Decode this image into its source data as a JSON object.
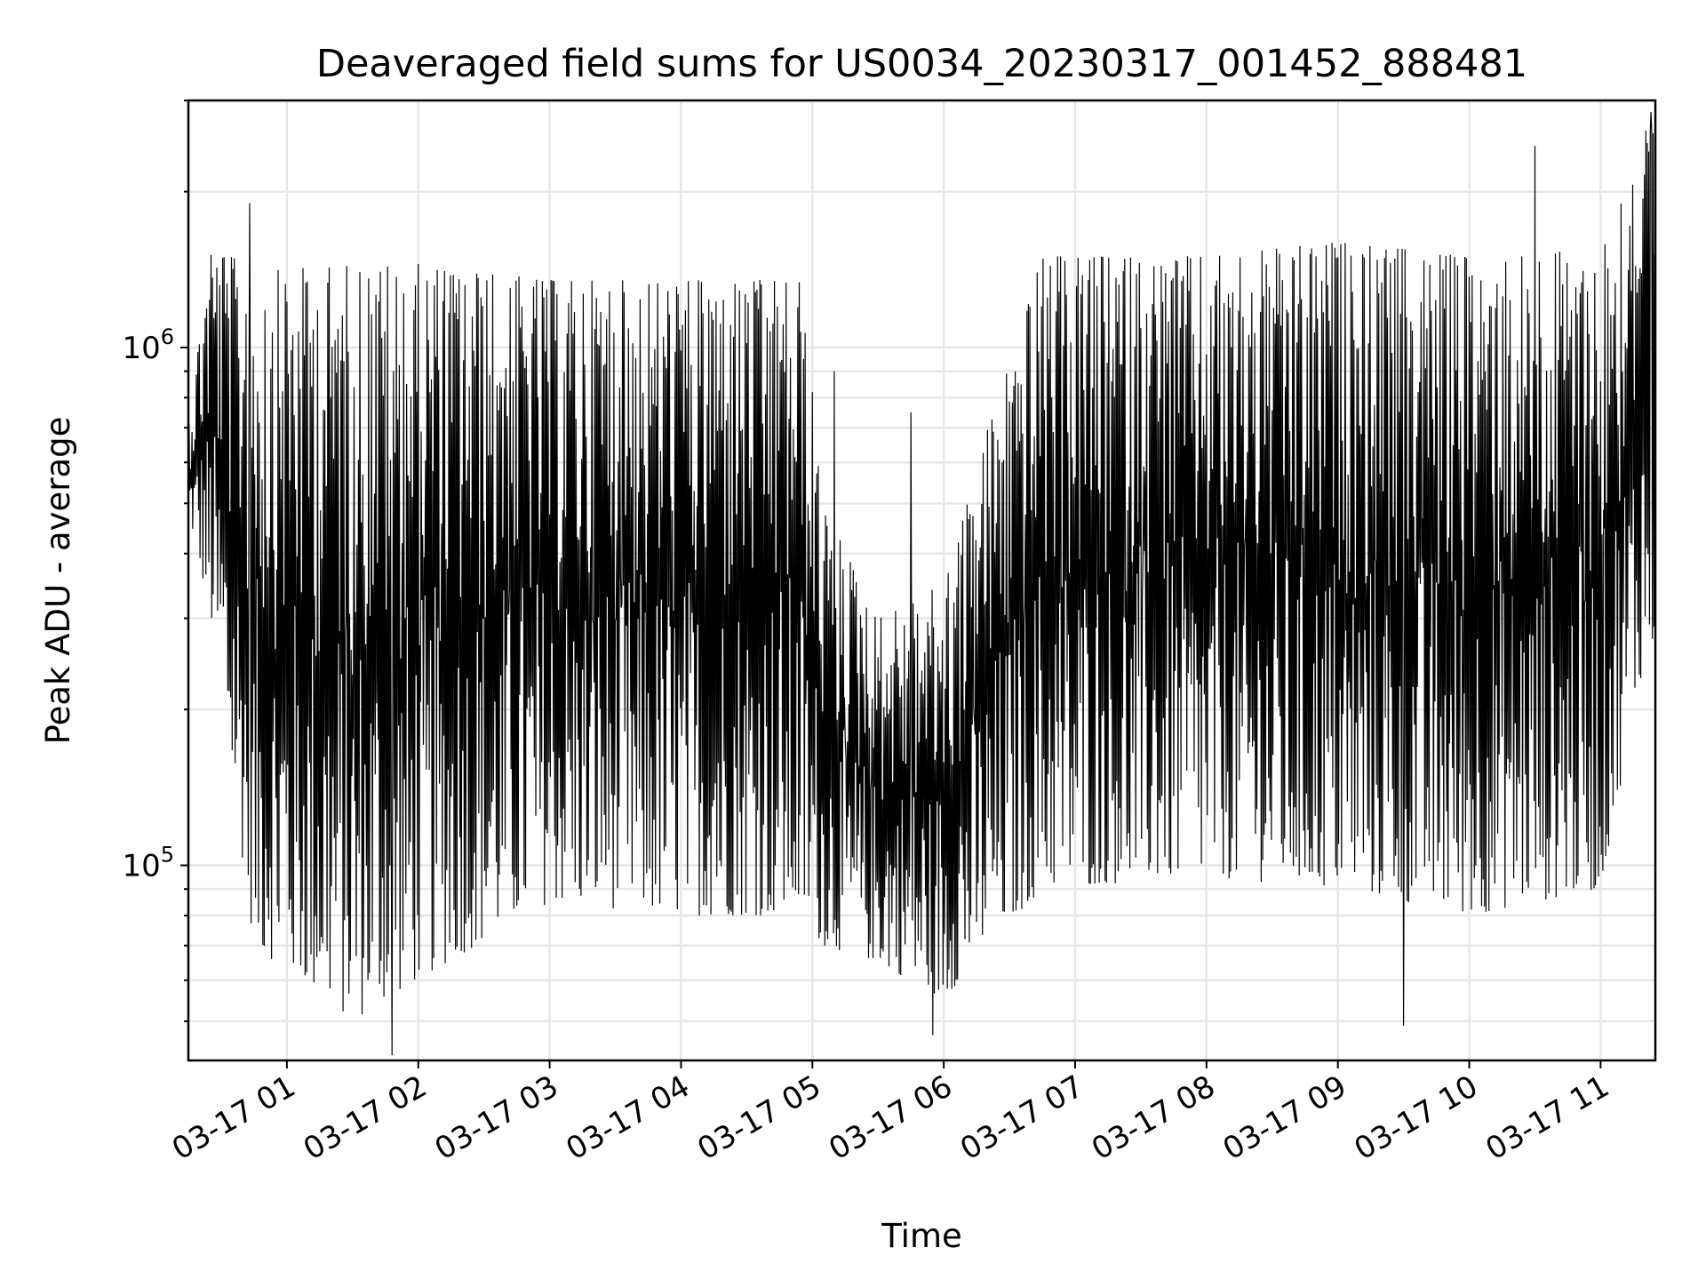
{
  "chart_data": {
    "type": "line",
    "title": "Deaveraged field sums for US0034_20230317_001452_888481",
    "xlabel": "Time",
    "ylabel": "Peak ADU - average",
    "yscale": "log",
    "xlim": [
      "2023-03-17T00:15",
      "2023-03-17T11:25"
    ],
    "ylim": [
      42000,
      3000000
    ],
    "grid": true,
    "legend": "none",
    "line_color": "#000000",
    "x_ticks": [
      "03-17 01",
      "03-17 02",
      "03-17 03",
      "03-17 04",
      "03-17 05",
      "03-17 06",
      "03-17 07",
      "03-17 08",
      "03-17 09",
      "03-17 10",
      "03-17 11"
    ],
    "y_tick_labels": [
      {
        "value": 100000,
        "base": "10",
        "exp": "5"
      },
      {
        "value": 1000000,
        "base": "10",
        "exp": "6"
      }
    ],
    "series": [
      {
        "sampling_minutes": 2,
        "envelope": [
          {
            "time": "2023-03-17T00:15",
            "low": 480000,
            "high": 720000
          },
          {
            "time": "2023-03-17T00:25",
            "low": 300000,
            "high": 1600000
          },
          {
            "time": "2023-03-17T00:45",
            "low": 70000,
            "high": 1400000
          },
          {
            "time": "2023-03-17T01:30",
            "low": 50000,
            "high": 1450000
          },
          {
            "time": "2023-03-17T02:00",
            "low": 60000,
            "high": 1450000
          },
          {
            "time": "2023-03-17T03:00",
            "low": 85000,
            "high": 1350000
          },
          {
            "time": "2023-03-17T04:00",
            "low": 80000,
            "high": 1350000
          },
          {
            "time": "2023-03-17T04:55",
            "low": 80000,
            "high": 1350000
          },
          {
            "time": "2023-03-17T05:05",
            "low": 70000,
            "high": 500000
          },
          {
            "time": "2023-03-17T05:30",
            "low": 65000,
            "high": 300000
          },
          {
            "time": "2023-03-17T06:00",
            "low": 55000,
            "high": 350000
          },
          {
            "time": "2023-03-17T06:20",
            "low": 70000,
            "high": 700000
          },
          {
            "time": "2023-03-17T06:45",
            "low": 90000,
            "high": 1500000
          },
          {
            "time": "2023-03-17T08:00",
            "low": 95000,
            "high": 1500000
          },
          {
            "time": "2023-03-17T09:00",
            "low": 90000,
            "high": 1600000
          },
          {
            "time": "2023-03-17T10:00",
            "low": 80000,
            "high": 1500000
          },
          {
            "time": "2023-03-17T11:00",
            "low": 90000,
            "high": 1550000
          },
          {
            "time": "2023-03-17T11:20",
            "low": 250000,
            "high": 2700000
          }
        ],
        "spikes": [
          {
            "time": "2023-03-17T00:43",
            "value": 1900000
          },
          {
            "time": "2023-03-17T01:48",
            "value": 43000
          },
          {
            "time": "2023-03-17T05:10",
            "value": 900000
          },
          {
            "time": "2023-03-17T05:45",
            "value": 750000
          },
          {
            "time": "2023-03-17T05:55",
            "value": 47000
          },
          {
            "time": "2023-03-17T09:30",
            "value": 49000
          },
          {
            "time": "2023-03-17T10:30",
            "value": 2450000
          },
          {
            "time": "2023-03-17T11:23",
            "value": 2850000
          }
        ]
      }
    ]
  }
}
